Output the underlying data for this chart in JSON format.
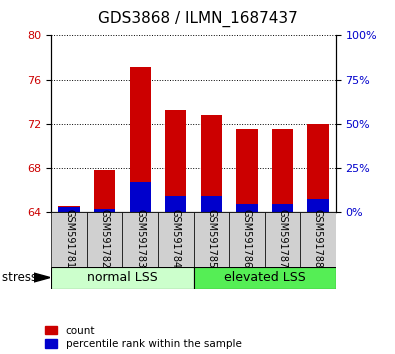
{
  "title": "GDS3868 / ILMN_1687437",
  "categories": [
    "GSM591781",
    "GSM591782",
    "GSM591783",
    "GSM591784",
    "GSM591785",
    "GSM591786",
    "GSM591787",
    "GSM591788"
  ],
  "count_values": [
    64.55,
    67.85,
    77.1,
    73.25,
    72.8,
    71.5,
    71.5,
    71.95
  ],
  "percentile_values": [
    64.45,
    64.3,
    66.75,
    65.5,
    65.5,
    64.75,
    64.75,
    65.2
  ],
  "baseline": 64.0,
  "ylim_left": [
    64,
    80
  ],
  "yticks_left": [
    64,
    68,
    72,
    76,
    80
  ],
  "ylim_right": [
    0,
    100
  ],
  "yticks_right": [
    0,
    25,
    50,
    75,
    100
  ],
  "yright_labels": [
    "0%",
    "25%",
    "50%",
    "75%",
    "100%"
  ],
  "count_color": "#cc0000",
  "percentile_color": "#0000cc",
  "bar_width": 0.6,
  "group1_label": "normal LSS",
  "group2_label": "elevated LSS",
  "group1_color": "#ccffcc",
  "group2_color": "#55ee55",
  "stress_label": "stress",
  "legend_count": "count",
  "legend_percentile": "percentile rank within the sample",
  "left_tick_color": "#cc0000",
  "right_tick_color": "#0000cc",
  "title_fontsize": 11,
  "tick_fontsize": 8,
  "label_fontsize": 8.5,
  "category_fontsize": 7,
  "group_fontsize": 9
}
